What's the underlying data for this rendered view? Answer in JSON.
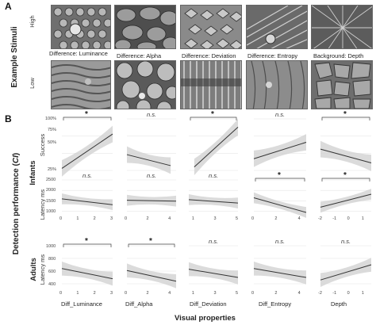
{
  "panel_a": {
    "letter": "A",
    "side_title": "Example Stimuli",
    "level_high": "High",
    "level_low": "Low",
    "captions": [
      "Difference: Luminance",
      "Difference: Alpha",
      "Difference: Deviation",
      "Difference: Entropy",
      "Background: Depth"
    ]
  },
  "panel_b": {
    "letter": "B",
    "side_title": "Detection performance (",
    "side_title_ci": "CI",
    "side_title_end": ")",
    "infants_label": "Infants",
    "adults_label": "Adults",
    "row_labels": [
      "Success",
      "Latency ms",
      "Latency ms"
    ],
    "x_labels": [
      "Diff_Luminance",
      "Diff_Alpha",
      "Diff_Deviation",
      "Diff_Entropy",
      "Depth"
    ],
    "x_title": "Visual properties",
    "success_ticks": [
      "100%",
      "75%",
      "50%",
      "25%"
    ],
    "latency_infant_ticks": [
      "2500",
      "2000",
      "1500",
      "1000"
    ],
    "latency_adult_ticks": [
      "1000",
      "800",
      "600",
      "400"
    ],
    "x_ticks": [
      [
        "0",
        "1",
        "2",
        "3"
      ],
      [
        "0",
        "2",
        "4"
      ],
      [
        "1",
        "3",
        "5"
      ],
      [
        "0",
        "2",
        "4"
      ],
      [
        "-2",
        "-1",
        "0",
        "1"
      ]
    ],
    "significance": {
      "success": [
        "*",
        "n.s.",
        "*",
        "n.s.",
        "*"
      ],
      "latency_infants": [
        "n.s.",
        "n.s.",
        "n.s.",
        "*",
        "*"
      ],
      "latency_adults": [
        "*",
        "*",
        "n.s.",
        "n.s.",
        "n.s."
      ]
    }
  },
  "chart_data": [
    {
      "type": "line",
      "row": "Infants Success",
      "ylim": [
        0.25,
        1.0
      ],
      "series": [
        {
          "x": [
            0,
            3
          ],
          "values": [
            0.28,
            0.78
          ]
        },
        {
          "x": [
            0,
            4
          ],
          "values": [
            0.48,
            0.32
          ]
        },
        {
          "x": [
            1,
            5
          ],
          "values": [
            0.3,
            0.88
          ]
        },
        {
          "x": [
            0,
            4.5
          ],
          "values": [
            0.42,
            0.66
          ]
        },
        {
          "x": [
            -2,
            1.5
          ],
          "values": [
            0.56,
            0.36
          ]
        }
      ]
    },
    {
      "type": "line",
      "row": "Infants Latency ms",
      "ylim": [
        800,
        2500
      ],
      "series": [
        {
          "x": [
            0,
            3
          ],
          "values": [
            1600,
            1320
          ]
        },
        {
          "x": [
            0,
            4.5
          ],
          "values": [
            1530,
            1490
          ]
        },
        {
          "x": [
            0.5,
            5
          ],
          "values": [
            1560,
            1400
          ]
        },
        {
          "x": [
            0,
            4.5
          ],
          "values": [
            1650,
            950
          ]
        },
        {
          "x": [
            -2,
            1.5
          ],
          "values": [
            1200,
            1820
          ]
        }
      ]
    },
    {
      "type": "line",
      "row": "Adults Latency ms",
      "ylim": [
        300,
        1000
      ],
      "series": [
        {
          "x": [
            0,
            3
          ],
          "values": [
            640,
            480
          ]
        },
        {
          "x": [
            0,
            4.5
          ],
          "values": [
            610,
            440
          ]
        },
        {
          "x": [
            0.5,
            5
          ],
          "values": [
            630,
            500
          ]
        },
        {
          "x": [
            0,
            4.5
          ],
          "values": [
            640,
            500
          ]
        },
        {
          "x": [
            -2,
            1.5
          ],
          "values": [
            460,
            700
          ]
        }
      ]
    }
  ]
}
